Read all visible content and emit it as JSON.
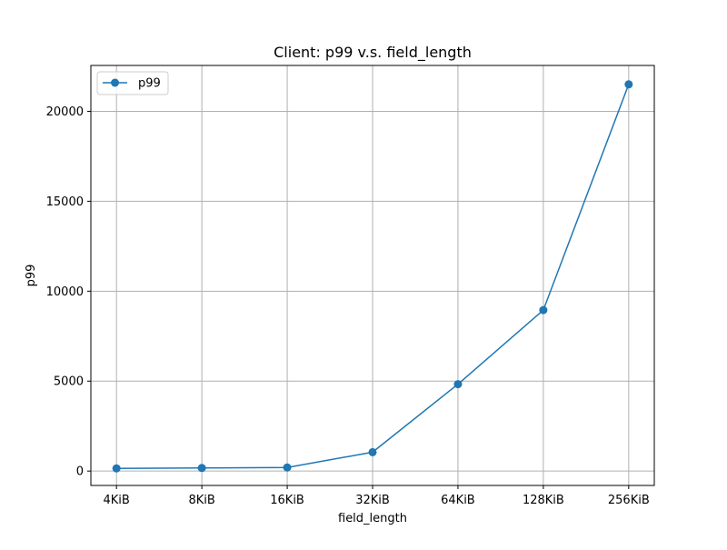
{
  "chart_data": {
    "type": "line",
    "title": "Client: p99 v.s. field_length",
    "xlabel": "field_length",
    "ylabel": "p99",
    "categories": [
      "4KiB",
      "8KiB",
      "16KiB",
      "32KiB",
      "64KiB",
      "128KiB",
      "256KiB"
    ],
    "series": [
      {
        "name": "p99",
        "values": [
          150,
          170,
          200,
          1050,
          4830,
          8950,
          21500
        ]
      }
    ],
    "ylim": [
      -800,
      22550
    ],
    "yticks": [
      0,
      5000,
      10000,
      15000,
      20000
    ],
    "grid": true,
    "legend_position": "top-left",
    "colors": {
      "series": "#1f77b4",
      "grid": "#b0b0b0",
      "axes": "#000000"
    }
  }
}
